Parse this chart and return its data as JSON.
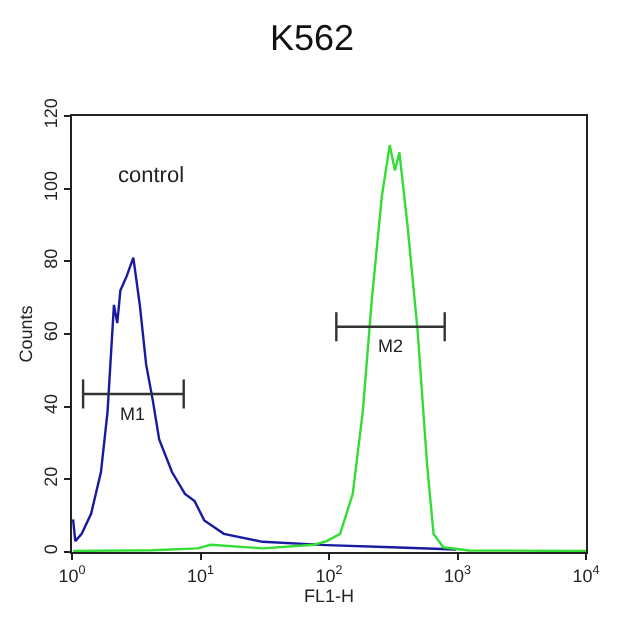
{
  "chart_data": {
    "type": "line",
    "title": "K562",
    "xlabel": "FL1-H",
    "ylabel": "Counts",
    "log": "x",
    "xlim": [
      1,
      10000
    ],
    "xticks": [
      {
        "value": 1,
        "label": "10$^{0}$"
      },
      {
        "value": 10,
        "label": "10$^{1}$"
      },
      {
        "value": 100,
        "label": "10$^{2}$"
      },
      {
        "value": 1000,
        "label": "10$^{3}$"
      },
      {
        "value": 10000,
        "label": "10$^{4}$"
      }
    ],
    "ylim": [
      0,
      120
    ],
    "yticks": [
      0,
      20,
      40,
      60,
      80,
      100,
      120
    ],
    "annotations": [
      "control",
      {
        "text": "M1",
        "x": 3.0,
        "y": 43.5
      },
      {
        "text": "M2",
        "x": 300,
        "y": 62
      }
    ],
    "series": [
      {
        "color": "#1a1aa0",
        "x": [
          1.02,
          1.06,
          1.19,
          1.41,
          1.68,
          1.89,
          2.12,
          2.25,
          2.38,
          2.67,
          3.0,
          3.37,
          3.78,
          4.24,
          4.77,
          6.0,
          7.57,
          9.0,
          10.7,
          15.2,
          30.4,
          96,
          307,
          980
        ],
        "values": [
          9,
          3,
          5,
          10.6,
          22,
          38.5,
          68,
          63,
          72,
          76,
          81,
          68,
          51.5,
          42,
          31,
          22,
          16,
          14,
          8.7,
          5,
          2.8,
          1.9,
          1.3,
          0.7
        ]
      },
      {
        "color": "#33dd33",
        "x": [
          1.02,
          4.24,
          9.5,
          12,
          30.4,
          76.5,
          96,
          122,
          153,
          183,
          216,
          258,
          297,
          326,
          353,
          408,
          489,
          580,
          651,
          776,
          1230,
          10000
        ],
        "values": [
          0.3,
          0.5,
          1,
          2,
          1,
          2,
          3,
          5,
          16,
          38.5,
          70,
          98,
          112,
          105,
          110,
          90,
          61,
          24,
          5,
          1.3,
          0.4,
          0.3
        ]
      },
      {
        "color": "#333333",
        "x": [
          1.22,
          7.4
        ],
        "values": [
          43.5,
          43.5
        ],
        "errors": [
          4,
          4
        ]
      },
      {
        "color": "#333333",
        "x": [
          114,
          795
        ],
        "values": [
          62,
          62
        ],
        "errors": [
          4,
          4
        ]
      }
    ]
  }
}
